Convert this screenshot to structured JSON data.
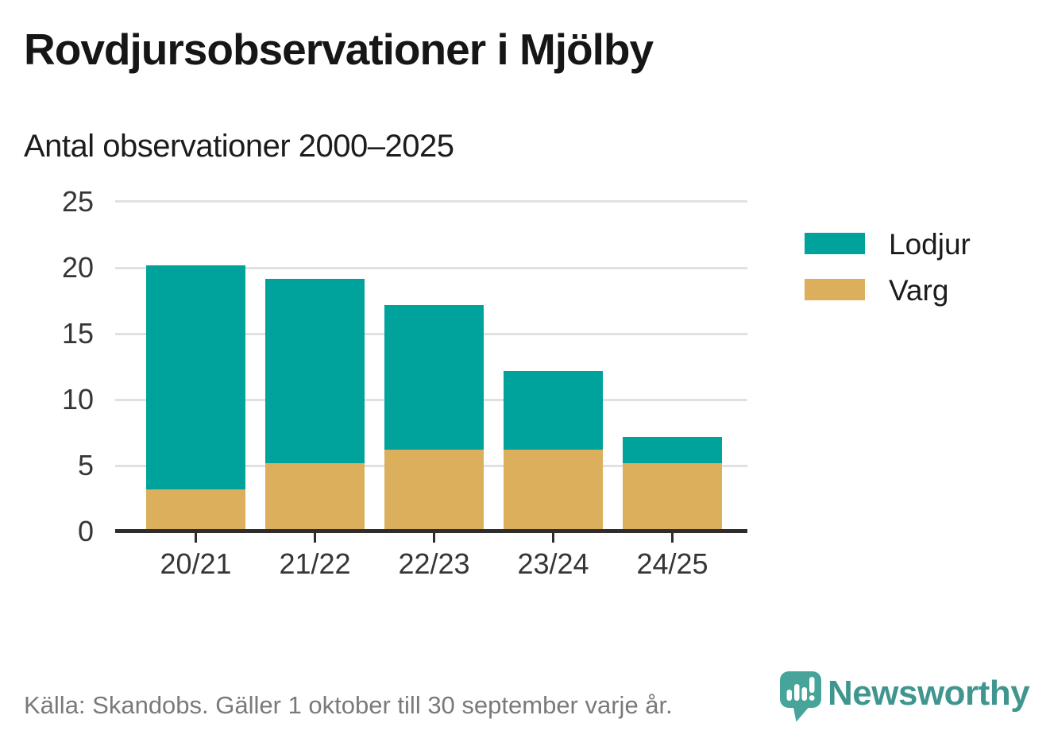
{
  "title": "Rovdjursobservationer i Mjölby",
  "subtitle": "Antal observationer 2000–2025",
  "legend": [
    {
      "label": "Lodjur",
      "color": "#00a39b"
    },
    {
      "label": "Varg",
      "color": "#dbaf5c"
    }
  ],
  "footer": {
    "source_note": "Källa: Skandobs. Gäller 1 oktober till 30 september varje år."
  },
  "brand": {
    "name": "Newsworthy",
    "logo_icon": "speech-bubble-bar-chart-icon",
    "text_color": "#40968f",
    "icon_color": "#46a49b"
  },
  "chart_data": {
    "type": "bar",
    "stacked": true,
    "title": "Rovdjursobservationer i Mjölby",
    "subtitle": "Antal observationer 2000–2025",
    "categories": [
      "20/21",
      "21/22",
      "22/23",
      "23/24",
      "24/25"
    ],
    "series": [
      {
        "name": "Lodjur",
        "color": "#00a39b",
        "values": [
          17,
          14,
          11,
          6,
          2
        ]
      },
      {
        "name": "Varg",
        "color": "#dbaf5c",
        "values": [
          3,
          5,
          6,
          6,
          5
        ]
      }
    ],
    "totals": [
      20,
      19,
      17,
      12,
      7
    ],
    "stack_order_bottom_to_top": [
      "Varg",
      "Lodjur"
    ],
    "xlabel": "",
    "ylabel": "",
    "y_ticks": [
      0,
      5,
      10,
      15,
      20,
      25
    ],
    "ylim": [
      0,
      25
    ],
    "grid": true,
    "legend_position": "right"
  }
}
